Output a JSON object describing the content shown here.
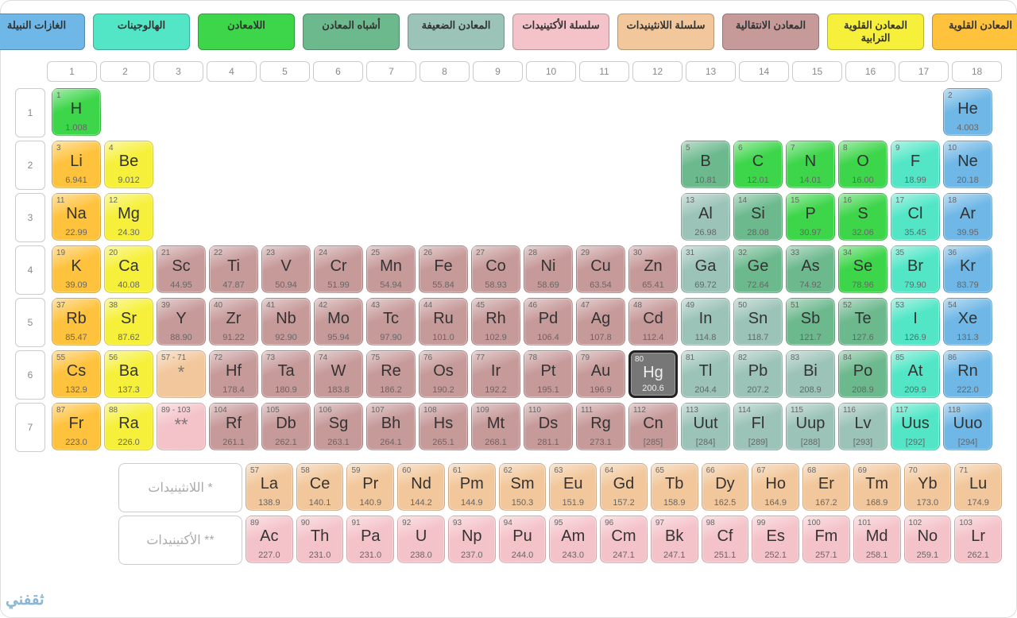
{
  "colors": {
    "alkali": "#ffc23d",
    "alkearth": "#f6f03a",
    "transition": "#c79a9a",
    "lanth": "#f2c79b",
    "act": "#f4c3c9",
    "poor": "#9cc3b8",
    "metalloid": "#6db98e",
    "nonmetal": "#3dd54a",
    "halogen": "#52e6c7",
    "noble": "#6fb7e6",
    "highlight_bg": "#777777",
    "highlight_border": "#111111",
    "border": "#cccccc"
  },
  "legend": [
    {
      "label": "المعادن القلوية",
      "key": "alkali"
    },
    {
      "label": "المعادن القلوية الترابية",
      "key": "alkearth"
    },
    {
      "label": "المعادن الانتقالية",
      "key": "transition"
    },
    {
      "label": "سلسلة اللانثينيدات",
      "key": "lanth"
    },
    {
      "label": "سلسلة الأكتينيدات",
      "key": "act"
    },
    {
      "label": "المعادن الضعيفة",
      "key": "poor"
    },
    {
      "label": "أشباه المعادن",
      "key": "metalloid"
    },
    {
      "label": "اللامعادن",
      "key": "nonmetal"
    },
    {
      "label": "الهالوجينات",
      "key": "halogen"
    },
    {
      "label": "الغازات النبيلة",
      "key": "noble"
    }
  ],
  "groups": [
    "1",
    "2",
    "3",
    "4",
    "5",
    "6",
    "7",
    "8",
    "9",
    "10",
    "11",
    "12",
    "13",
    "14",
    "15",
    "16",
    "17",
    "18"
  ],
  "periods": [
    "1",
    "2",
    "3",
    "4",
    "5",
    "6",
    "7"
  ],
  "footer_labels": {
    "lanth": "* اللانثينيدات",
    "act": "** الأكتينيدات"
  },
  "highlighted": "Hg",
  "watermark": "ثقفني",
  "elements": [
    {
      "n": "1",
      "s": "H",
      "m": "1.008",
      "g": 1,
      "p": 1,
      "c": "nonmetal"
    },
    {
      "n": "2",
      "s": "He",
      "m": "4.003",
      "g": 18,
      "p": 1,
      "c": "noble"
    },
    {
      "n": "3",
      "s": "Li",
      "m": "6.941",
      "g": 1,
      "p": 2,
      "c": "alkali"
    },
    {
      "n": "4",
      "s": "Be",
      "m": "9.012",
      "g": 2,
      "p": 2,
      "c": "alkearth"
    },
    {
      "n": "5",
      "s": "B",
      "m": "10.81",
      "g": 13,
      "p": 2,
      "c": "metalloid"
    },
    {
      "n": "6",
      "s": "C",
      "m": "12.01",
      "g": 14,
      "p": 2,
      "c": "nonmetal"
    },
    {
      "n": "7",
      "s": "N",
      "m": "14.01",
      "g": 15,
      "p": 2,
      "c": "nonmetal"
    },
    {
      "n": "8",
      "s": "O",
      "m": "16.00",
      "g": 16,
      "p": 2,
      "c": "nonmetal"
    },
    {
      "n": "9",
      "s": "F",
      "m": "18.99",
      "g": 17,
      "p": 2,
      "c": "halogen"
    },
    {
      "n": "10",
      "s": "Ne",
      "m": "20.18",
      "g": 18,
      "p": 2,
      "c": "noble"
    },
    {
      "n": "11",
      "s": "Na",
      "m": "22.99",
      "g": 1,
      "p": 3,
      "c": "alkali"
    },
    {
      "n": "12",
      "s": "Mg",
      "m": "24.30",
      "g": 2,
      "p": 3,
      "c": "alkearth"
    },
    {
      "n": "13",
      "s": "Al",
      "m": "26.98",
      "g": 13,
      "p": 3,
      "c": "poor"
    },
    {
      "n": "14",
      "s": "Si",
      "m": "28.08",
      "g": 14,
      "p": 3,
      "c": "metalloid"
    },
    {
      "n": "15",
      "s": "P",
      "m": "30.97",
      "g": 15,
      "p": 3,
      "c": "nonmetal"
    },
    {
      "n": "16",
      "s": "S",
      "m": "32.06",
      "g": 16,
      "p": 3,
      "c": "nonmetal"
    },
    {
      "n": "17",
      "s": "Cl",
      "m": "35.45",
      "g": 17,
      "p": 3,
      "c": "halogen"
    },
    {
      "n": "18",
      "s": "Ar",
      "m": "39.95",
      "g": 18,
      "p": 3,
      "c": "noble"
    },
    {
      "n": "19",
      "s": "K",
      "m": "39.09",
      "g": 1,
      "p": 4,
      "c": "alkali"
    },
    {
      "n": "20",
      "s": "Ca",
      "m": "40.08",
      "g": 2,
      "p": 4,
      "c": "alkearth"
    },
    {
      "n": "21",
      "s": "Sc",
      "m": "44.95",
      "g": 3,
      "p": 4,
      "c": "transition"
    },
    {
      "n": "22",
      "s": "Ti",
      "m": "47.87",
      "g": 4,
      "p": 4,
      "c": "transition"
    },
    {
      "n": "23",
      "s": "V",
      "m": "50.94",
      "g": 5,
      "p": 4,
      "c": "transition"
    },
    {
      "n": "24",
      "s": "Cr",
      "m": "51.99",
      "g": 6,
      "p": 4,
      "c": "transition"
    },
    {
      "n": "25",
      "s": "Mn",
      "m": "54.94",
      "g": 7,
      "p": 4,
      "c": "transition"
    },
    {
      "n": "26",
      "s": "Fe",
      "m": "55.84",
      "g": 8,
      "p": 4,
      "c": "transition"
    },
    {
      "n": "27",
      "s": "Co",
      "m": "58.93",
      "g": 9,
      "p": 4,
      "c": "transition"
    },
    {
      "n": "28",
      "s": "Ni",
      "m": "58.69",
      "g": 10,
      "p": 4,
      "c": "transition"
    },
    {
      "n": "29",
      "s": "Cu",
      "m": "63.54",
      "g": 11,
      "p": 4,
      "c": "transition"
    },
    {
      "n": "30",
      "s": "Zn",
      "m": "65.41",
      "g": 12,
      "p": 4,
      "c": "transition"
    },
    {
      "n": "31",
      "s": "Ga",
      "m": "69.72",
      "g": 13,
      "p": 4,
      "c": "poor"
    },
    {
      "n": "32",
      "s": "Ge",
      "m": "72.64",
      "g": 14,
      "p": 4,
      "c": "metalloid"
    },
    {
      "n": "33",
      "s": "As",
      "m": "74.92",
      "g": 15,
      "p": 4,
      "c": "metalloid"
    },
    {
      "n": "34",
      "s": "Se",
      "m": "78.96",
      "g": 16,
      "p": 4,
      "c": "nonmetal"
    },
    {
      "n": "35",
      "s": "Br",
      "m": "79.90",
      "g": 17,
      "p": 4,
      "c": "halogen"
    },
    {
      "n": "36",
      "s": "Kr",
      "m": "83.79",
      "g": 18,
      "p": 4,
      "c": "noble"
    },
    {
      "n": "37",
      "s": "Rb",
      "m": "85.47",
      "g": 1,
      "p": 5,
      "c": "alkali"
    },
    {
      "n": "38",
      "s": "Sr",
      "m": "87.62",
      "g": 2,
      "p": 5,
      "c": "alkearth"
    },
    {
      "n": "39",
      "s": "Y",
      "m": "88.90",
      "g": 3,
      "p": 5,
      "c": "transition"
    },
    {
      "n": "40",
      "s": "Zr",
      "m": "91.22",
      "g": 4,
      "p": 5,
      "c": "transition"
    },
    {
      "n": "41",
      "s": "Nb",
      "m": "92.90",
      "g": 5,
      "p": 5,
      "c": "transition"
    },
    {
      "n": "42",
      "s": "Mo",
      "m": "95.94",
      "g": 6,
      "p": 5,
      "c": "transition"
    },
    {
      "n": "43",
      "s": "Tc",
      "m": "97.90",
      "g": 7,
      "p": 5,
      "c": "transition"
    },
    {
      "n": "44",
      "s": "Ru",
      "m": "101.0",
      "g": 8,
      "p": 5,
      "c": "transition"
    },
    {
      "n": "45",
      "s": "Rh",
      "m": "102.9",
      "g": 9,
      "p": 5,
      "c": "transition"
    },
    {
      "n": "46",
      "s": "Pd",
      "m": "106.4",
      "g": 10,
      "p": 5,
      "c": "transition"
    },
    {
      "n": "47",
      "s": "Ag",
      "m": "107.8",
      "g": 11,
      "p": 5,
      "c": "transition"
    },
    {
      "n": "48",
      "s": "Cd",
      "m": "112.4",
      "g": 12,
      "p": 5,
      "c": "transition"
    },
    {
      "n": "49",
      "s": "In",
      "m": "114.8",
      "g": 13,
      "p": 5,
      "c": "poor"
    },
    {
      "n": "50",
      "s": "Sn",
      "m": "118.7",
      "g": 14,
      "p": 5,
      "c": "poor"
    },
    {
      "n": "51",
      "s": "Sb",
      "m": "121.7",
      "g": 15,
      "p": 5,
      "c": "metalloid"
    },
    {
      "n": "52",
      "s": "Te",
      "m": "127.6",
      "g": 16,
      "p": 5,
      "c": "metalloid"
    },
    {
      "n": "53",
      "s": "I",
      "m": "126.9",
      "g": 17,
      "p": 5,
      "c": "halogen"
    },
    {
      "n": "54",
      "s": "Xe",
      "m": "131.3",
      "g": 18,
      "p": 5,
      "c": "noble"
    },
    {
      "n": "55",
      "s": "Cs",
      "m": "132.9",
      "g": 1,
      "p": 6,
      "c": "alkali"
    },
    {
      "n": "56",
      "s": "Ba",
      "m": "137.3",
      "g": 2,
      "p": 6,
      "c": "alkearth"
    },
    {
      "n": "57 - 71",
      "s": "*",
      "m": "",
      "g": 3,
      "p": 6,
      "c": "lanth",
      "star": true
    },
    {
      "n": "72",
      "s": "Hf",
      "m": "178.4",
      "g": 4,
      "p": 6,
      "c": "transition"
    },
    {
      "n": "73",
      "s": "Ta",
      "m": "180.9",
      "g": 5,
      "p": 6,
      "c": "transition"
    },
    {
      "n": "74",
      "s": "W",
      "m": "183.8",
      "g": 6,
      "p": 6,
      "c": "transition"
    },
    {
      "n": "75",
      "s": "Re",
      "m": "186.2",
      "g": 7,
      "p": 6,
      "c": "transition"
    },
    {
      "n": "76",
      "s": "Os",
      "m": "190.2",
      "g": 8,
      "p": 6,
      "c": "transition"
    },
    {
      "n": "77",
      "s": "Ir",
      "m": "192.2",
      "g": 9,
      "p": 6,
      "c": "transition"
    },
    {
      "n": "78",
      "s": "Pt",
      "m": "195.1",
      "g": 10,
      "p": 6,
      "c": "transition"
    },
    {
      "n": "79",
      "s": "Au",
      "m": "196.9",
      "g": 11,
      "p": 6,
      "c": "transition"
    },
    {
      "n": "80",
      "s": "Hg",
      "m": "200.6",
      "g": 12,
      "p": 6,
      "c": "transition"
    },
    {
      "n": "81",
      "s": "Tl",
      "m": "204.4",
      "g": 13,
      "p": 6,
      "c": "poor"
    },
    {
      "n": "82",
      "s": "Pb",
      "m": "207.2",
      "g": 14,
      "p": 6,
      "c": "poor"
    },
    {
      "n": "83",
      "s": "Bi",
      "m": "208.9",
      "g": 15,
      "p": 6,
      "c": "poor"
    },
    {
      "n": "84",
      "s": "Po",
      "m": "208.9",
      "g": 16,
      "p": 6,
      "c": "metalloid"
    },
    {
      "n": "85",
      "s": "At",
      "m": "209.9",
      "g": 17,
      "p": 6,
      "c": "halogen"
    },
    {
      "n": "86",
      "s": "Rn",
      "m": "222.0",
      "g": 18,
      "p": 6,
      "c": "noble"
    },
    {
      "n": "87",
      "s": "Fr",
      "m": "223.0",
      "g": 1,
      "p": 7,
      "c": "alkali"
    },
    {
      "n": "88",
      "s": "Ra",
      "m": "226.0",
      "g": 2,
      "p": 7,
      "c": "alkearth"
    },
    {
      "n": "89 - 103",
      "s": "**",
      "m": "",
      "g": 3,
      "p": 7,
      "c": "act",
      "star": true
    },
    {
      "n": "104",
      "s": "Rf",
      "m": "261.1",
      "g": 4,
      "p": 7,
      "c": "transition"
    },
    {
      "n": "105",
      "s": "Db",
      "m": "262.1",
      "g": 5,
      "p": 7,
      "c": "transition"
    },
    {
      "n": "106",
      "s": "Sg",
      "m": "263.1",
      "g": 6,
      "p": 7,
      "c": "transition"
    },
    {
      "n": "107",
      "s": "Bh",
      "m": "264.1",
      "g": 7,
      "p": 7,
      "c": "transition"
    },
    {
      "n": "108",
      "s": "Hs",
      "m": "265.1",
      "g": 8,
      "p": 7,
      "c": "transition"
    },
    {
      "n": "109",
      "s": "Mt",
      "m": "268.1",
      "g": 9,
      "p": 7,
      "c": "transition"
    },
    {
      "n": "110",
      "s": "Ds",
      "m": "281.1",
      "g": 10,
      "p": 7,
      "c": "transition"
    },
    {
      "n": "111",
      "s": "Rg",
      "m": "273.1",
      "g": 11,
      "p": 7,
      "c": "transition"
    },
    {
      "n": "112",
      "s": "Cn",
      "m": "[285]",
      "g": 12,
      "p": 7,
      "c": "transition"
    },
    {
      "n": "113",
      "s": "Uut",
      "m": "[284]",
      "g": 13,
      "p": 7,
      "c": "poor"
    },
    {
      "n": "114",
      "s": "Fl",
      "m": "[289]",
      "g": 14,
      "p": 7,
      "c": "poor"
    },
    {
      "n": "115",
      "s": "Uup",
      "m": "[288]",
      "g": 15,
      "p": 7,
      "c": "poor"
    },
    {
      "n": "116",
      "s": "Lv",
      "m": "[293]",
      "g": 16,
      "p": 7,
      "c": "poor"
    },
    {
      "n": "117",
      "s": "Uus",
      "m": "[292]",
      "g": 17,
      "p": 7,
      "c": "halogen"
    },
    {
      "n": "118",
      "s": "Uuo",
      "m": "[294]",
      "g": 18,
      "p": 7,
      "c": "noble"
    }
  ],
  "lanthanides": [
    {
      "n": "57",
      "s": "La",
      "m": "138.9"
    },
    {
      "n": "58",
      "s": "Ce",
      "m": "140.1"
    },
    {
      "n": "59",
      "s": "Pr",
      "m": "140.9"
    },
    {
      "n": "60",
      "s": "Nd",
      "m": "144.2"
    },
    {
      "n": "61",
      "s": "Pm",
      "m": "144.9"
    },
    {
      "n": "62",
      "s": "Sm",
      "m": "150.3"
    },
    {
      "n": "63",
      "s": "Eu",
      "m": "151.9"
    },
    {
      "n": "64",
      "s": "Gd",
      "m": "157.2"
    },
    {
      "n": "65",
      "s": "Tb",
      "m": "158.9"
    },
    {
      "n": "66",
      "s": "Dy",
      "m": "162.5"
    },
    {
      "n": "67",
      "s": "Ho",
      "m": "164.9"
    },
    {
      "n": "68",
      "s": "Er",
      "m": "167.2"
    },
    {
      "n": "69",
      "s": "Tm",
      "m": "168.9"
    },
    {
      "n": "70",
      "s": "Yb",
      "m": "173.0"
    },
    {
      "n": "71",
      "s": "Lu",
      "m": "174.9"
    }
  ],
  "actinides": [
    {
      "n": "89",
      "s": "Ac",
      "m": "227.0"
    },
    {
      "n": "90",
      "s": "Th",
      "m": "231.0"
    },
    {
      "n": "91",
      "s": "Pa",
      "m": "231.0"
    },
    {
      "n": "92",
      "s": "U",
      "m": "238.0"
    },
    {
      "n": "93",
      "s": "Np",
      "m": "237.0"
    },
    {
      "n": "94",
      "s": "Pu",
      "m": "244.0"
    },
    {
      "n": "95",
      "s": "Am",
      "m": "243.0"
    },
    {
      "n": "96",
      "s": "Cm",
      "m": "247.1"
    },
    {
      "n": "97",
      "s": "Bk",
      "m": "247.1"
    },
    {
      "n": "98",
      "s": "Cf",
      "m": "251.1"
    },
    {
      "n": "99",
      "s": "Es",
      "m": "252.1"
    },
    {
      "n": "100",
      "s": "Fm",
      "m": "257.1"
    },
    {
      "n": "101",
      "s": "Md",
      "m": "258.1"
    },
    {
      "n": "102",
      "s": "No",
      "m": "259.1"
    },
    {
      "n": "103",
      "s": "Lr",
      "m": "262.1"
    }
  ]
}
